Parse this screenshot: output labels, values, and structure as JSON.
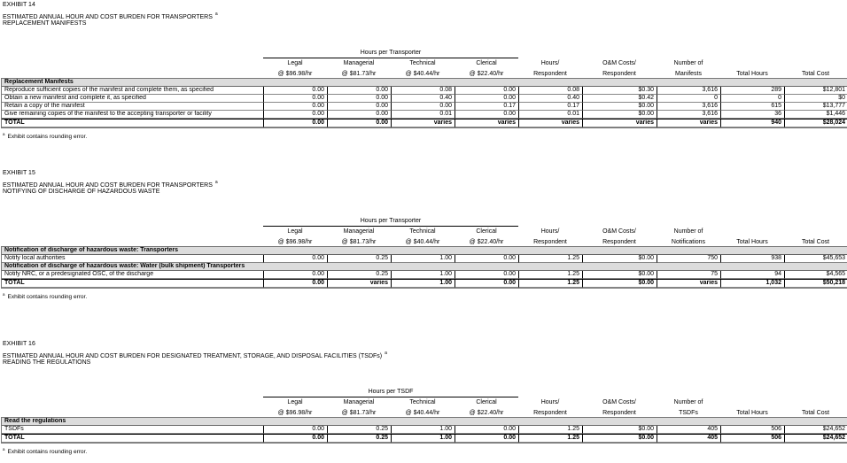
{
  "exhibits": [
    {
      "label": "EXHIBIT 14",
      "title": "ESTIMATED ANNUAL HOUR AND COST BURDEN FOR TRANSPORTERS",
      "footnote_mark": "a",
      "subtitle": "REPLACEMENT MANIFESTS",
      "group_header": "Hours per Transporter",
      "columns": [
        [
          "Legal",
          "@ $96.98/hr"
        ],
        [
          "Managerial",
          "@ $81.73/hr"
        ],
        [
          "Technical",
          "@ $40.44/hr"
        ],
        [
          "Clerical",
          "@ $22.40/hr"
        ],
        [
          "Hours/",
          "Respondent"
        ],
        [
          "O&M Costs/",
          "Respondent"
        ],
        [
          "Number of",
          "Manifests"
        ],
        [
          "",
          "Total Hours"
        ],
        [
          "",
          "Total Cost"
        ]
      ],
      "sections": [
        {
          "heading": "Replacement Manifests",
          "rows": [
            {
              "label": "Reproduce sufficient copies of the manifest and complete them, as specified",
              "values": [
                "0.00",
                "0.00",
                "0.08",
                "0.00",
                "0.08",
                "$0.30",
                "3,616",
                "289",
                "$12,801"
              ]
            },
            {
              "label": "Obtain a new manifest and complete it, as specified",
              "values": [
                "0.00",
                "0.00",
                "0.40",
                "0.00",
                "0.40",
                "$0.42",
                "0",
                "0",
                "$0"
              ]
            },
            {
              "label": "Retain a copy of the manifest",
              "values": [
                "0.00",
                "0.00",
                "0.00",
                "0.17",
                "0.17",
                "$0.00",
                "3,616",
                "615",
                "$13,777"
              ]
            },
            {
              "label": "Give remaining copies of the manifest to the accepting transporter or facility",
              "values": [
                "0.00",
                "0.00",
                "0.01",
                "0.00",
                "0.01",
                "$0.00",
                "3,616",
                "36",
                "$1,446"
              ]
            }
          ]
        }
      ],
      "total": {
        "label": "TOTAL",
        "values": [
          "0.00",
          "0.00",
          "varies",
          "varies",
          "varies",
          "varies",
          "varies",
          "940",
          "$28,024"
        ]
      },
      "footnote": "Exhibit contains rounding error."
    },
    {
      "label": "EXHIBIT 15",
      "title": "ESTIMATED ANNUAL HOUR AND COST BURDEN FOR TRANSPORTERS",
      "footnote_mark": "a",
      "subtitle": "NOTIFYING OF DISCHARGE OF HAZARDOUS WASTE",
      "group_header": "Hours per Transporter",
      "columns": [
        [
          "Legal",
          "@ $96.98/hr"
        ],
        [
          "Managerial",
          "@ $81.73/hr"
        ],
        [
          "Technical",
          "@ $40.44/hr"
        ],
        [
          "Clerical",
          "@ $22.40/hr"
        ],
        [
          "Hours/",
          "Respondent"
        ],
        [
          "O&M Costs/",
          "Respondent"
        ],
        [
          "Number of",
          "Notifications"
        ],
        [
          "",
          "Total Hours"
        ],
        [
          "",
          "Total Cost"
        ]
      ],
      "sections": [
        {
          "heading": "Notification of discharge of hazardous waste:  Transporters",
          "rows": [
            {
              "label": "Notify local authorities",
              "values": [
                "0.00",
                "0.25",
                "1.00",
                "0.00",
                "1.25",
                "$0.00",
                "750",
                "938",
                "$45,653"
              ]
            }
          ]
        },
        {
          "heading": "Notification of discharge of hazardous waste:  Water (bulk shipment) Transporters",
          "rows": [
            {
              "label": "Notify NRC, or a predesignated OSC, of the discharge",
              "values": [
                "0.00",
                "0.25",
                "1.00",
                "0.00",
                "1.25",
                "$0.00",
                "75",
                "94",
                "$4,565"
              ]
            }
          ]
        }
      ],
      "total": {
        "label": "TOTAL",
        "values": [
          "0.00",
          "varies",
          "1.00",
          "0.00",
          "1.25",
          "$0.00",
          "varies",
          "1,032",
          "$50,218"
        ]
      },
      "footnote": "Exhibit contains rounding error."
    },
    {
      "label": "EXHIBIT 16",
      "title": "ESTIMATED ANNUAL HOUR AND COST BURDEN FOR DESIGNATED TREATMENT, STORAGE, AND DISPOSAL FACILITIES (TSDFs)",
      "footnote_mark": "a",
      "subtitle": "READING THE REGULATIONS",
      "group_header": "Hours per TSDF",
      "columns": [
        [
          "Legal",
          "@ $96.98/hr"
        ],
        [
          "Managerial",
          "@ $81.73/hr"
        ],
        [
          "Technical",
          "@ $40.44/hr"
        ],
        [
          "Clerical",
          "@ $22.40/hr"
        ],
        [
          "Hours/",
          "Respondent"
        ],
        [
          "O&M Costs/",
          "Respondent"
        ],
        [
          "Number of",
          "TSDFs"
        ],
        [
          "",
          "Total Hours"
        ],
        [
          "",
          "Total Cost"
        ]
      ],
      "sections": [
        {
          "heading": "Read the regulations",
          "rows": [
            {
              "label": "TSDFs",
              "values": [
                "0.00",
                "0.25",
                "1.00",
                "0.00",
                "1.25",
                "$0.00",
                "405",
                "506",
                "$24,652"
              ]
            }
          ]
        }
      ],
      "total": {
        "label": "TOTAL",
        "values": [
          "0.00",
          "0.25",
          "1.00",
          "0.00",
          "1.25",
          "$0.00",
          "405",
          "506",
          "$24,652"
        ]
      },
      "footnote": "Exhibit contains rounding error."
    }
  ]
}
